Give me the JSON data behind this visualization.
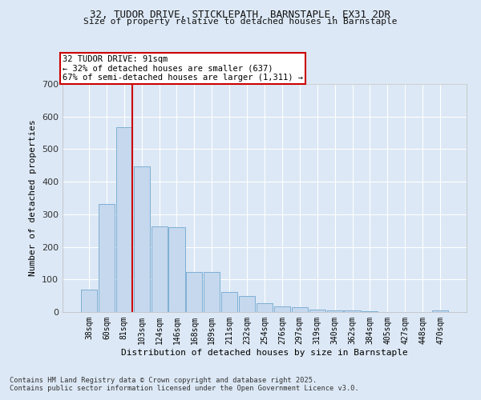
{
  "title1": "32, TUDOR DRIVE, STICKLEPATH, BARNSTAPLE, EX31 2DR",
  "title2": "Size of property relative to detached houses in Barnstaple",
  "xlabel": "Distribution of detached houses by size in Barnstaple",
  "ylabel": "Number of detached properties",
  "bar_labels": [
    "38sqm",
    "60sqm",
    "81sqm",
    "103sqm",
    "124sqm",
    "146sqm",
    "168sqm",
    "189sqm",
    "211sqm",
    "232sqm",
    "254sqm",
    "276sqm",
    "297sqm",
    "319sqm",
    "340sqm",
    "362sqm",
    "384sqm",
    "405sqm",
    "427sqm",
    "448sqm",
    "470sqm"
  ],
  "bar_values": [
    68,
    332,
    568,
    447,
    262,
    260,
    122,
    122,
    62,
    50,
    28,
    18,
    14,
    7,
    5,
    5,
    2,
    1,
    1,
    1,
    5
  ],
  "bar_color": "#c5d8ee",
  "bar_edge_color": "#7eafd4",
  "vline_color": "#cc0000",
  "ylim": [
    0,
    700
  ],
  "yticks": [
    0,
    100,
    200,
    300,
    400,
    500,
    600,
    700
  ],
  "annotation_text": "32 TUDOR DRIVE: 91sqm\n← 32% of detached houses are smaller (637)\n67% of semi-detached houses are larger (1,311) →",
  "footer_text": "Contains HM Land Registry data © Crown copyright and database right 2025.\nContains public sector information licensed under the Open Government Licence v3.0.",
  "bg_color": "#dce8f5",
  "plot_bg_color": "#dce8f5",
  "grid_color": "#ffffff",
  "title_fontsize": 9,
  "subtitle_fontsize": 8
}
